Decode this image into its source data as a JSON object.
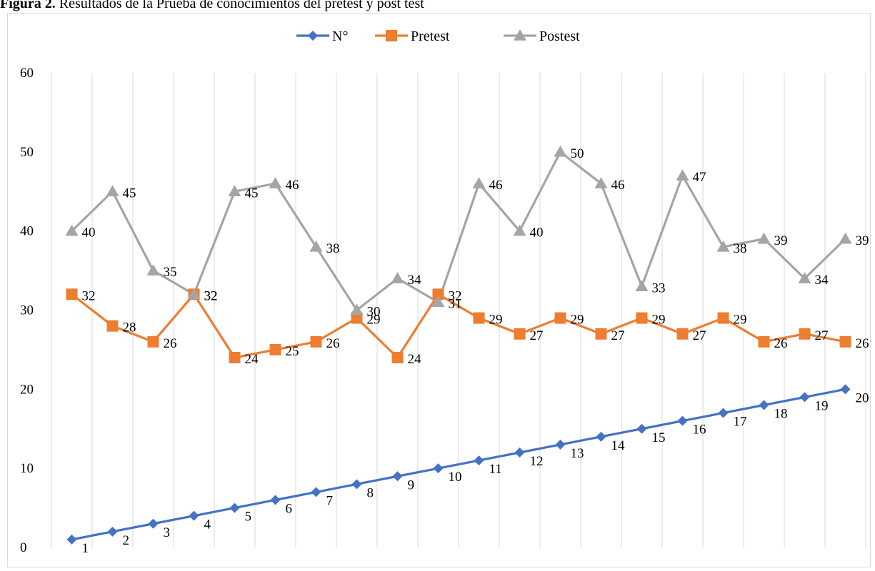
{
  "caption": {
    "label": "Figura 2.",
    "text": "Resultados de la Prueba de conocimientos del pretest y post test"
  },
  "chart_data": {
    "type": "line",
    "title": "",
    "xlabel": "",
    "ylabel": "",
    "x": [
      1,
      2,
      3,
      4,
      5,
      6,
      7,
      8,
      9,
      10,
      11,
      12,
      13,
      14,
      15,
      16,
      17,
      18,
      19,
      20
    ],
    "ylim": [
      0,
      60
    ],
    "yticks": [
      "0",
      "10",
      "20",
      "30",
      "40",
      "50",
      "60"
    ],
    "grid": "vertical",
    "legend": "top-center",
    "series": [
      {
        "name": "N°",
        "color": "#4472c4",
        "marker": "diamond",
        "values": [
          1,
          2,
          3,
          4,
          5,
          6,
          7,
          8,
          9,
          10,
          11,
          12,
          13,
          14,
          15,
          16,
          17,
          18,
          19,
          20
        ]
      },
      {
        "name": "Pretest",
        "color": "#ed7d31",
        "marker": "square",
        "values": [
          32,
          28,
          26,
          32,
          24,
          25,
          26,
          29,
          24,
          32,
          29,
          27,
          29,
          27,
          29,
          27,
          29,
          26,
          27,
          26
        ]
      },
      {
        "name": "Postest",
        "color": "#a5a5a5",
        "marker": "triangle",
        "values": [
          40,
          45,
          35,
          32,
          45,
          46,
          38,
          30,
          34,
          31,
          46,
          40,
          50,
          46,
          33,
          47,
          38,
          39,
          34,
          39
        ]
      }
    ]
  }
}
